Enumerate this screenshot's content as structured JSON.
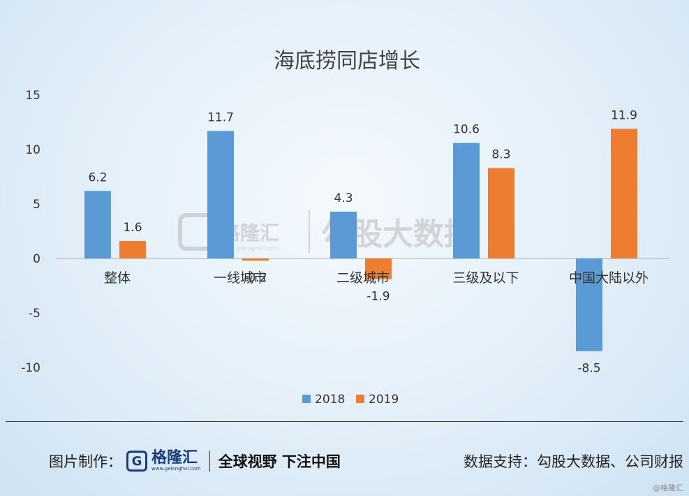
{
  "chart_data": {
    "type": "bar",
    "title": "海底捞同店增长",
    "categories": [
      "整体",
      "一线城市",
      "二级城市",
      "三级及以下",
      "中国大陆以外"
    ],
    "series": [
      {
        "name": "2018",
        "values": [
          6.2,
          11.7,
          4.3,
          10.6,
          -8.5
        ],
        "labels": [
          "6.2",
          "11.7",
          "4.3",
          "10.6",
          "-8.5"
        ],
        "color": "#5b9bd5"
      },
      {
        "name": "2019",
        "values": [
          1.6,
          -0.2,
          -1.9,
          8.3,
          11.9
        ],
        "labels": [
          "1.6",
          "-0.2",
          "-1.9",
          "8.3",
          "11.9"
        ],
        "color": "#ed7d31"
      }
    ],
    "ylim": [
      -10,
      15
    ],
    "yticks": [
      "15",
      "10",
      "5",
      "0",
      "-5",
      "-10"
    ],
    "grid": false,
    "legend_position": "bottom"
  },
  "watermark": {
    "logo_text": "格隆汇",
    "logo_url": "www.gelonghui.com",
    "text": "勾股大数据"
  },
  "footer": {
    "credit_label": "图片制作：",
    "logo_letter": "G",
    "logo_name": "格隆汇",
    "logo_url": "www.gelonghui.com",
    "slogan": "全球视野 下注中国",
    "source": "数据支持：勾股大数据、公司财报"
  },
  "corner_mark": "@格隆汇"
}
